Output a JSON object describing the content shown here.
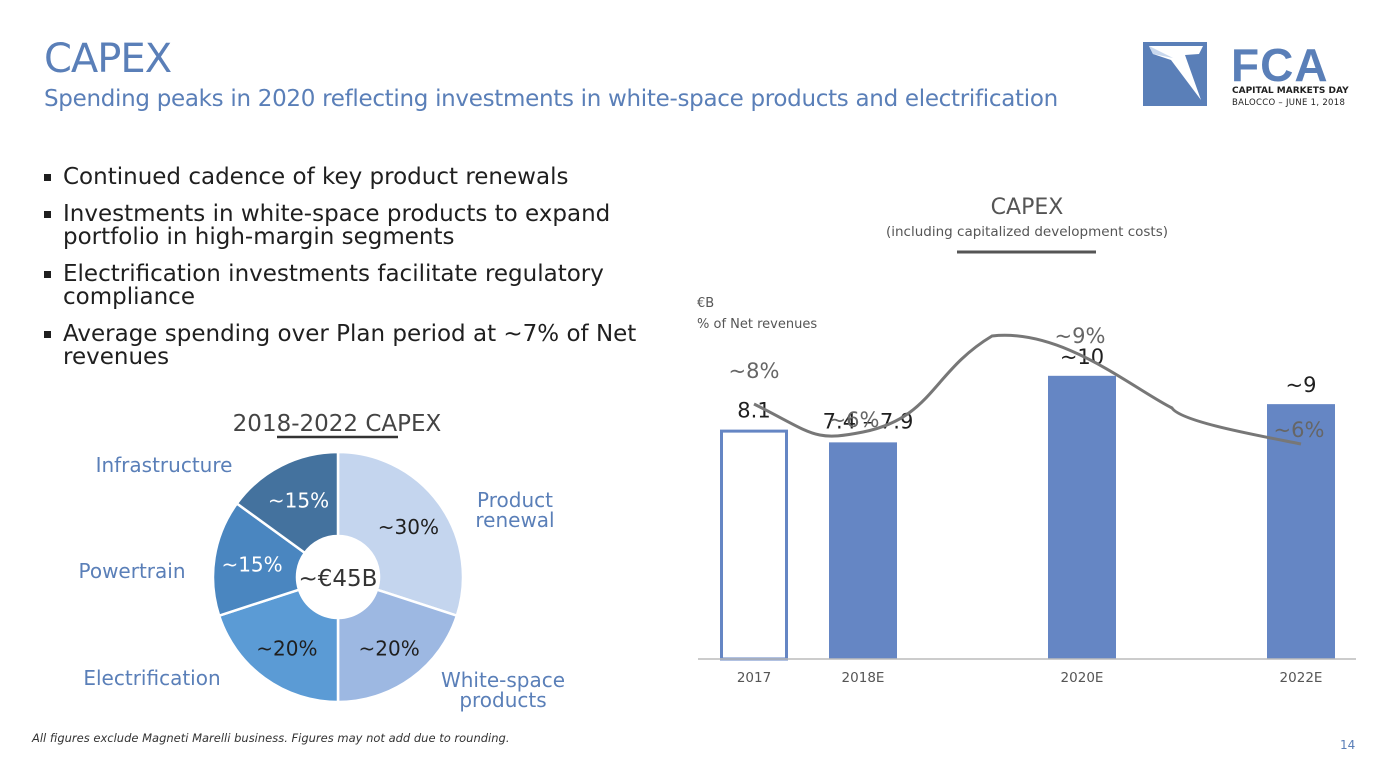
{
  "header": {
    "title": "CAPEX",
    "subtitle": "Spending peaks in 2020 reflecting investments in white-space products and electrification"
  },
  "logo": {
    "brand": "FCA",
    "line1": "CAPITAL MARKETS DAY",
    "line2": "BALOCCO – JUNE 1, 2018",
    "color": "#5a7fb8"
  },
  "bullets": [
    "Continued cadence of key product renewals",
    "Investments in white-space products to expand portfolio in high-margin segments",
    "Electrification investments facilitate regulatory compliance",
    "Average spending over Plan period at ~7% of Net revenues"
  ],
  "footnote": "All figures exclude Magneti Marelli business. Figures may not add due to rounding.",
  "page_number": "14",
  "chart_data": [
    {
      "type": "pie",
      "title": "2018-2022 CAPEX",
      "center_label": "~€45B",
      "slices": [
        {
          "label": "Product renewal",
          "value": 30,
          "display": "~30%",
          "color": "#c4d5ee"
        },
        {
          "label": "White-space products",
          "value": 20,
          "display": "~20%",
          "color": "#9db8e2"
        },
        {
          "label": "Electrification",
          "value": 20,
          "display": "~20%",
          "color": "#5b9bd5"
        },
        {
          "label": "Powertrain",
          "value": 15,
          "display": "~15%",
          "color": "#4a86c0"
        },
        {
          "label": "Infrastructure",
          "value": 15,
          "display": "~15%",
          "color": "#44729e"
        }
      ]
    },
    {
      "type": "bar",
      "title": "CAPEX",
      "subtitle": "(including capitalized development costs)",
      "ylabel": "€B",
      "line_label": "% of Net revenues",
      "categories": [
        "2017",
        "2018E",
        "2020E",
        "2022E"
      ],
      "values": [
        8.1,
        7.65,
        10,
        9
      ],
      "value_labels": [
        "8.1",
        "7.4 – 7.9",
        "~10",
        "~9"
      ],
      "outlined": [
        true,
        false,
        false,
        false
      ],
      "ylim": [
        0,
        11.3
      ],
      "bar_color": "#6586c4",
      "line_series": {
        "name": "% of Net revenues",
        "x": [
          2017,
          2018,
          2020,
          2022
        ],
        "values": [
          8,
          6,
          9,
          6
        ],
        "labels": [
          "~8%",
          "~6%",
          "~9%",
          "~6%"
        ]
      }
    }
  ]
}
